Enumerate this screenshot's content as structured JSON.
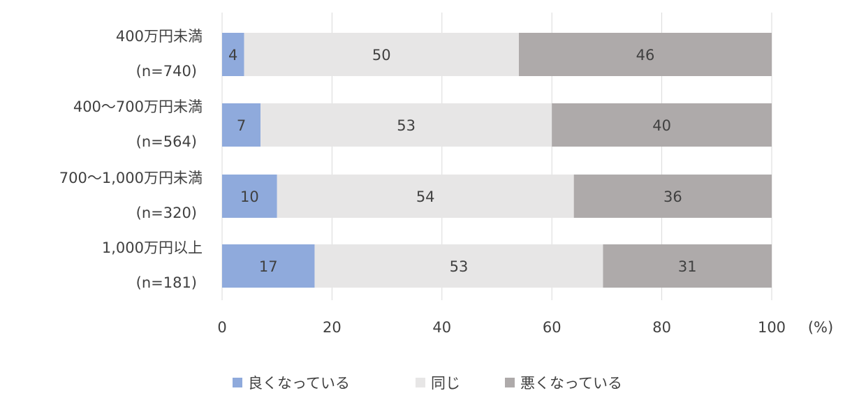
{
  "chart_data": {
    "type": "bar",
    "orientation": "horizontal",
    "stacked": true,
    "categories": [
      {
        "line1": "400万円未満",
        "line2": "(n=740)"
      },
      {
        "line1": "400～700万円未満",
        "line2": "(n=564)"
      },
      {
        "line1": "700～1,000万円未満",
        "line2": "(n=320)"
      },
      {
        "line1": "1,000万円以上",
        "line2": "(n=181)"
      }
    ],
    "series": [
      {
        "name": "良くなっている",
        "color": "#8faadc",
        "values": [
          4,
          7,
          10,
          17
        ]
      },
      {
        "name": "同じ",
        "color": "#e7e6e6",
        "values": [
          50,
          53,
          54,
          53
        ]
      },
      {
        "name": "悪くなっている",
        "color": "#aeaaaa",
        "values": [
          46,
          40,
          36,
          31
        ]
      }
    ],
    "xlim": [
      0,
      100
    ],
    "xticks": [
      "0",
      "20",
      "40",
      "60",
      "80",
      "100"
    ],
    "xunit": "(%)",
    "grid": true,
    "legend": "bottom"
  }
}
